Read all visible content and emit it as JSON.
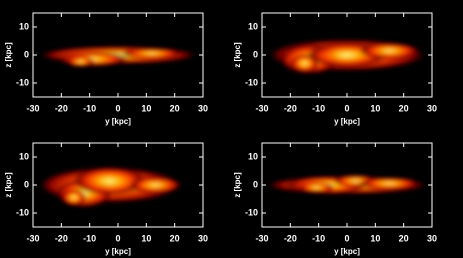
{
  "chart_data": [
    {
      "type": "image",
      "xlabel": "y [kpc]",
      "ylabel": "z [kpc]",
      "xlim": [
        -30,
        30
      ],
      "ylim": [
        -15,
        15
      ],
      "xticks": [
        -30,
        -20,
        -10,
        0,
        10,
        20,
        30
      ],
      "yticks": [
        -10,
        0,
        10
      ]
    },
    {
      "type": "image",
      "xlabel": "y [kpc]",
      "ylabel": "z [kpc]",
      "xlim": [
        -30,
        30
      ],
      "ylim": [
        -15,
        15
      ],
      "xticks": [
        -30,
        -20,
        -10,
        0,
        10,
        20,
        30
      ],
      "yticks": [
        -10,
        0,
        10
      ]
    },
    {
      "type": "image",
      "xlabel": "y [kpc]",
      "ylabel": "z [kpc]",
      "xlim": [
        -30,
        30
      ],
      "ylim": [
        -15,
        15
      ],
      "xticks": [
        -30,
        -20,
        -10,
        0,
        10,
        20,
        30
      ],
      "yticks": [
        -10,
        0,
        10
      ]
    },
    {
      "type": "image",
      "xlabel": "y [kpc]",
      "ylabel": "z [kpc]",
      "xlim": [
        -30,
        30
      ],
      "ylim": [
        -15,
        15
      ],
      "xticks": [
        -30,
        -20,
        -10,
        0,
        10,
        20,
        30
      ],
      "yticks": [
        -10,
        0,
        10
      ]
    }
  ]
}
